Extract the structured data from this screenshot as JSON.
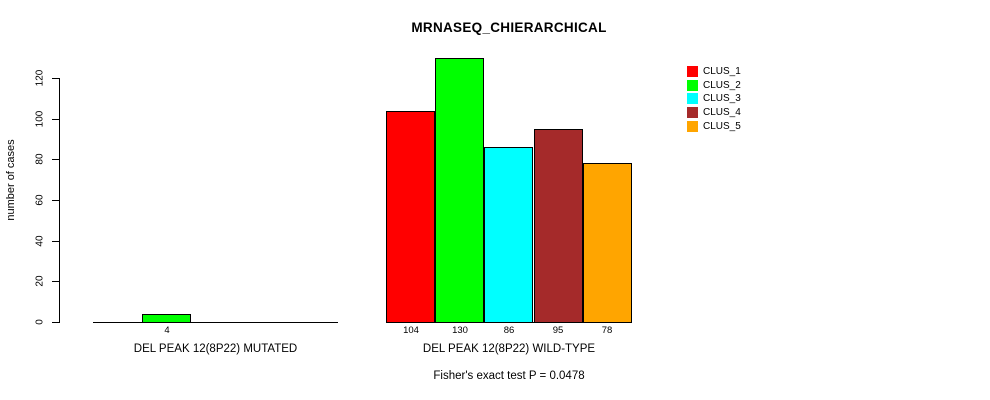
{
  "chart_data": {
    "type": "bar",
    "title": "MRNASEQ_CHIERARCHICAL",
    "ylabel": "number of cases",
    "xlabel": "",
    "ylim": [
      0,
      130
    ],
    "yticks": [
      0,
      20,
      40,
      60,
      80,
      100,
      120
    ],
    "grid": false,
    "legend_position": "top-right",
    "categories": [
      "DEL PEAK 12(8P22) MUTATED",
      "DEL PEAK 12(8P22) WILD-TYPE"
    ],
    "series": [
      {
        "name": "CLUS_1",
        "color": "#ff0000",
        "values": [
          0,
          104
        ]
      },
      {
        "name": "CLUS_2",
        "color": "#00ff00",
        "values": [
          4,
          130
        ]
      },
      {
        "name": "CLUS_3",
        "color": "#00ffff",
        "values": [
          0,
          86
        ]
      },
      {
        "name": "CLUS_4",
        "color": "#a52a2a",
        "values": [
          0,
          95
        ]
      },
      {
        "name": "CLUS_5",
        "color": "#ffa500",
        "values": [
          0,
          78
        ]
      }
    ],
    "bar_value_labels_shown_for_nonzero_only": true,
    "annotation": "Fisher's exact test P = 0.0478",
    "colors": {
      "background": "#ffffff",
      "axis": "#000000",
      "bar_border": "#000000",
      "text": "#000000"
    }
  }
}
